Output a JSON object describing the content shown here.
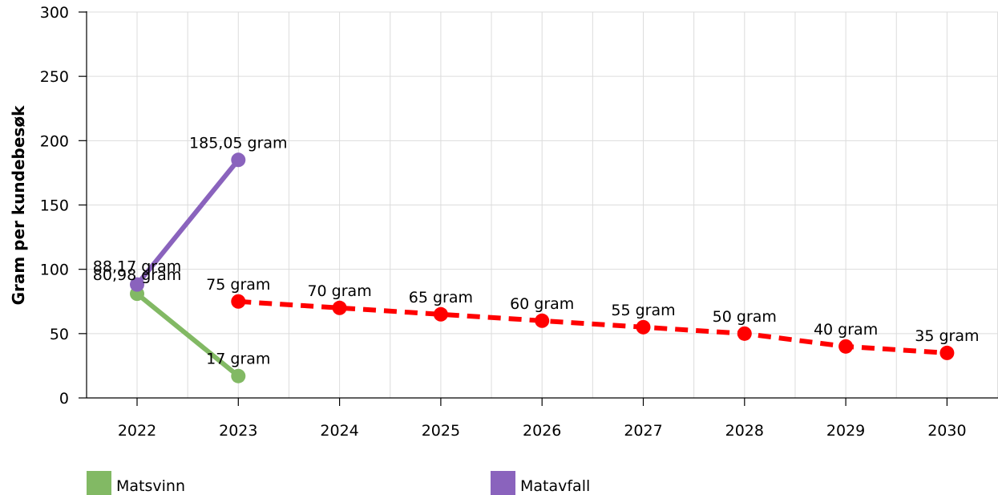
{
  "chart_data": {
    "type": "line",
    "title": "",
    "xlabel": "",
    "ylabel": "Gram per kundebesøk",
    "x": [
      "2022",
      "2023",
      "2024",
      "2025",
      "2026",
      "2027",
      "2028",
      "2029",
      "2030"
    ],
    "ylim": [
      0,
      300
    ],
    "yticks": [
      "0",
      "50",
      "100",
      "150",
      "200",
      "250",
      "300"
    ],
    "grid": true,
    "legend_position": "bottom",
    "series": [
      {
        "name": "Matsvinn",
        "color": "#82b964",
        "style": "solid",
        "points": [
          {
            "x": "2022",
            "y": 80.98,
            "label": "80,98 gram"
          },
          {
            "x": "2023",
            "y": 17,
            "label": "17 gram"
          }
        ]
      },
      {
        "name": "Matavfall",
        "color": "#8a63bd",
        "style": "solid",
        "points": [
          {
            "x": "2022",
            "y": 88.17,
            "label": "88,17 gram"
          },
          {
            "x": "2023",
            "y": 185.05,
            "label": "185,05 gram"
          }
        ]
      },
      {
        "color": "#ff0000",
        "style": "dashed",
        "points": [
          {
            "x": "2023",
            "y": 75,
            "label": "75 gram"
          },
          {
            "x": "2024",
            "y": 70,
            "label": "70 gram"
          },
          {
            "x": "2025",
            "y": 65,
            "label": "65 gram"
          },
          {
            "x": "2026",
            "y": 60,
            "label": "60 gram"
          },
          {
            "x": "2027",
            "y": 55,
            "label": "55 gram"
          },
          {
            "x": "2028",
            "y": 50,
            "label": "50 gram"
          },
          {
            "x": "2029",
            "y": 40,
            "label": "40 gram"
          },
          {
            "x": "2030",
            "y": 35,
            "label": "35 gram"
          }
        ]
      }
    ]
  }
}
